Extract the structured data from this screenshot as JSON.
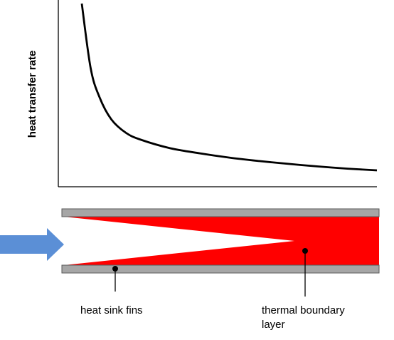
{
  "chart_data": {
    "type": "line",
    "title": "",
    "xlabel": "",
    "ylabel": "heat transfer rate",
    "grid": false,
    "legend": "none",
    "series": [
      {
        "x": [
          0.0,
          0.03,
          0.06,
          0.1,
          0.15,
          0.2,
          0.3,
          0.4,
          0.5,
          0.6,
          0.7,
          0.8,
          0.9,
          1.0
        ],
        "y": [
          1.0,
          0.62,
          0.45,
          0.32,
          0.24,
          0.2,
          0.15,
          0.12,
          0.095,
          0.075,
          0.058,
          0.043,
          0.03,
          0.02
        ]
      }
    ],
    "colors": {
      "curve": "#000000",
      "axes": "#000000"
    }
  },
  "diagram": {
    "labels": {
      "fins": "heat sink fins",
      "boundary_line1": "thermal boundary",
      "boundary_line2": "layer"
    },
    "colors": {
      "fin": "#a6a6a6",
      "fin_edge": "#595959",
      "boundary_layer": "#ff0000",
      "flow_arrow": "#5b8fd6"
    },
    "icons": {
      "flow_direction": "right-arrow-icon"
    }
  }
}
